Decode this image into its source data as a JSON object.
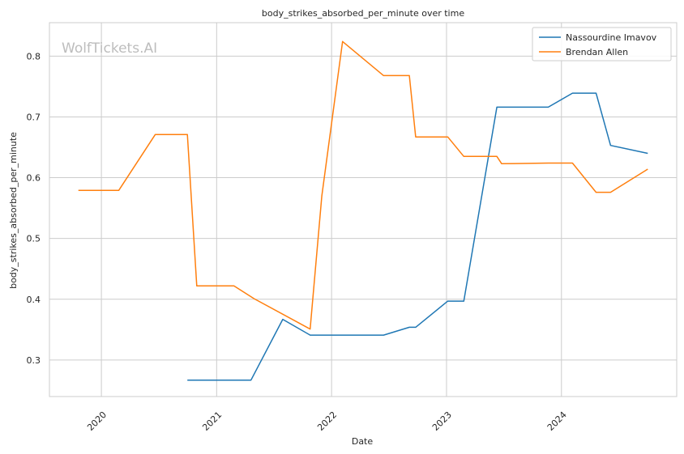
{
  "chart_data": {
    "type": "line",
    "title": "body_strikes_absorbed_per_minute over time",
    "xlabel": "Date",
    "ylabel": "body_strikes_absorbed_per_minute",
    "watermark": "WolfTickets.AI",
    "xlim": [
      "2019-07-20",
      "2025-01-01"
    ],
    "ylim": [
      0.24,
      0.855
    ],
    "x_ticks": [
      "2020-01-01",
      "2021-01-01",
      "2022-01-01",
      "2023-01-01",
      "2024-01-01"
    ],
    "x_tick_labels": [
      "2020",
      "2021",
      "2022",
      "2023",
      "2024"
    ],
    "y_ticks": [
      0.3,
      0.4,
      0.5,
      0.6,
      0.7,
      0.8
    ],
    "y_tick_labels": [
      "0.3",
      "0.4",
      "0.5",
      "0.6",
      "0.7",
      "0.8"
    ],
    "grid": true,
    "legend_position": "top-right",
    "series": [
      {
        "name": "Nassourdine Imavov",
        "color": "#1f77b4",
        "points": [
          [
            "2020-09-30",
            0.267
          ],
          [
            "2021-04-20",
            0.267
          ],
          [
            "2021-07-30",
            0.367
          ],
          [
            "2021-10-25",
            0.341
          ],
          [
            "2022-06-15",
            0.341
          ],
          [
            "2022-09-05",
            0.354
          ],
          [
            "2022-09-25",
            0.354
          ],
          [
            "2023-01-05",
            0.397
          ],
          [
            "2023-02-25",
            0.397
          ],
          [
            "2023-06-10",
            0.716
          ],
          [
            "2023-11-20",
            0.716
          ],
          [
            "2024-02-05",
            0.739
          ],
          [
            "2024-04-20",
            0.739
          ],
          [
            "2024-06-05",
            0.653
          ],
          [
            "2024-10-01",
            0.64
          ]
        ]
      },
      {
        "name": "Brendan Allen",
        "color": "#ff7f0e",
        "points": [
          [
            "2019-10-20",
            0.579
          ],
          [
            "2020-02-25",
            0.579
          ],
          [
            "2020-06-20",
            0.671
          ],
          [
            "2020-09-30",
            0.671
          ],
          [
            "2020-10-30",
            0.422
          ],
          [
            "2021-02-25",
            0.422
          ],
          [
            "2021-04-30",
            0.401
          ],
          [
            "2021-10-25",
            0.351
          ],
          [
            "2021-12-01",
            0.57
          ],
          [
            "2022-02-05",
            0.824
          ],
          [
            "2022-06-15",
            0.768
          ],
          [
            "2022-09-05",
            0.768
          ],
          [
            "2022-09-25",
            0.667
          ],
          [
            "2023-01-05",
            0.667
          ],
          [
            "2023-02-25",
            0.635
          ],
          [
            "2023-06-10",
            0.635
          ],
          [
            "2023-06-25",
            0.623
          ],
          [
            "2023-11-20",
            0.624
          ],
          [
            "2024-02-05",
            0.624
          ],
          [
            "2024-04-20",
            0.576
          ],
          [
            "2024-06-05",
            0.576
          ],
          [
            "2024-10-01",
            0.614
          ]
        ]
      }
    ]
  }
}
